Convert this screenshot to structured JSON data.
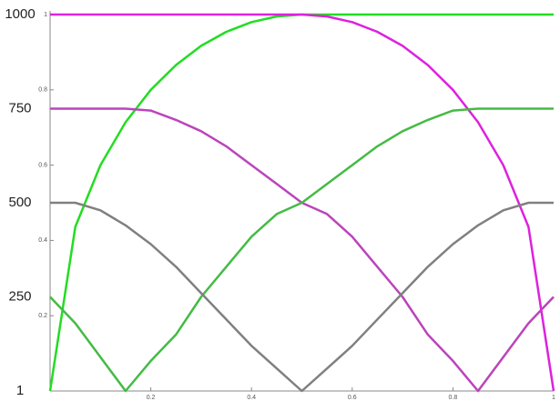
{
  "chart_data": {
    "type": "line",
    "x": [
      0,
      0.05,
      0.1,
      0.15,
      0.2,
      0.25,
      0.3,
      0.35,
      0.4,
      0.45,
      0.5,
      0.55,
      0.6,
      0.65,
      0.7,
      0.75,
      0.8,
      0.85,
      0.9,
      0.95,
      1
    ],
    "series": [
      {
        "color": "#22dd22",
        "values": [
          0,
          0.436,
          0.6,
          0.714,
          0.8,
          0.866,
          0.917,
          0.954,
          0.98,
          0.995,
          1,
          1,
          1,
          1,
          1,
          1,
          1,
          1,
          1,
          1,
          1
        ]
      },
      {
        "color": "#dd22dd",
        "values": [
          1,
          1,
          1,
          1,
          1,
          1,
          1,
          1,
          1,
          1,
          1,
          0.995,
          0.98,
          0.954,
          0.917,
          0.866,
          0.8,
          0.714,
          0.6,
          0.436,
          0
        ]
      },
      {
        "color": "#bb44bb",
        "values": [
          0.75,
          0.75,
          0.75,
          0.75,
          0.745,
          0.72,
          0.69,
          0.65,
          0.6,
          0.55,
          0.5,
          0.47,
          0.41,
          0.33,
          0.25,
          0.15,
          0.08,
          0,
          0.09,
          0.18,
          0.25
        ]
      },
      {
        "color": "#44bb44",
        "values": [
          0.25,
          0.18,
          0.09,
          0,
          0.08,
          0.15,
          0.25,
          0.33,
          0.41,
          0.47,
          0.5,
          0.55,
          0.6,
          0.65,
          0.69,
          0.72,
          0.745,
          0.75,
          0.75,
          0.75,
          0.75
        ]
      },
      {
        "color": "#808080",
        "values": [
          0.5,
          0.5,
          0.48,
          0.44,
          0.39,
          0.33,
          0.26,
          0.19,
          0.12,
          0.06,
          0,
          0.06,
          0.12,
          0.19,
          0.26,
          0.33,
          0.39,
          0.44,
          0.48,
          0.5,
          0.5
        ]
      }
    ],
    "xlim": [
      0,
      1
    ],
    "ylim": [
      0,
      1
    ],
    "xticks": [
      0.2,
      0.4,
      0.6,
      0.8,
      1
    ],
    "yticks": [
      0.2,
      0.4,
      0.6,
      0.8,
      1
    ],
    "outer_yticks": [
      {
        "value": 1,
        "label": "1000"
      },
      {
        "value": 0.75,
        "label": "750"
      },
      {
        "value": 0.5,
        "label": "500"
      },
      {
        "value": 0.25,
        "label": "250"
      },
      {
        "value": 0,
        "label": "1"
      }
    ]
  }
}
